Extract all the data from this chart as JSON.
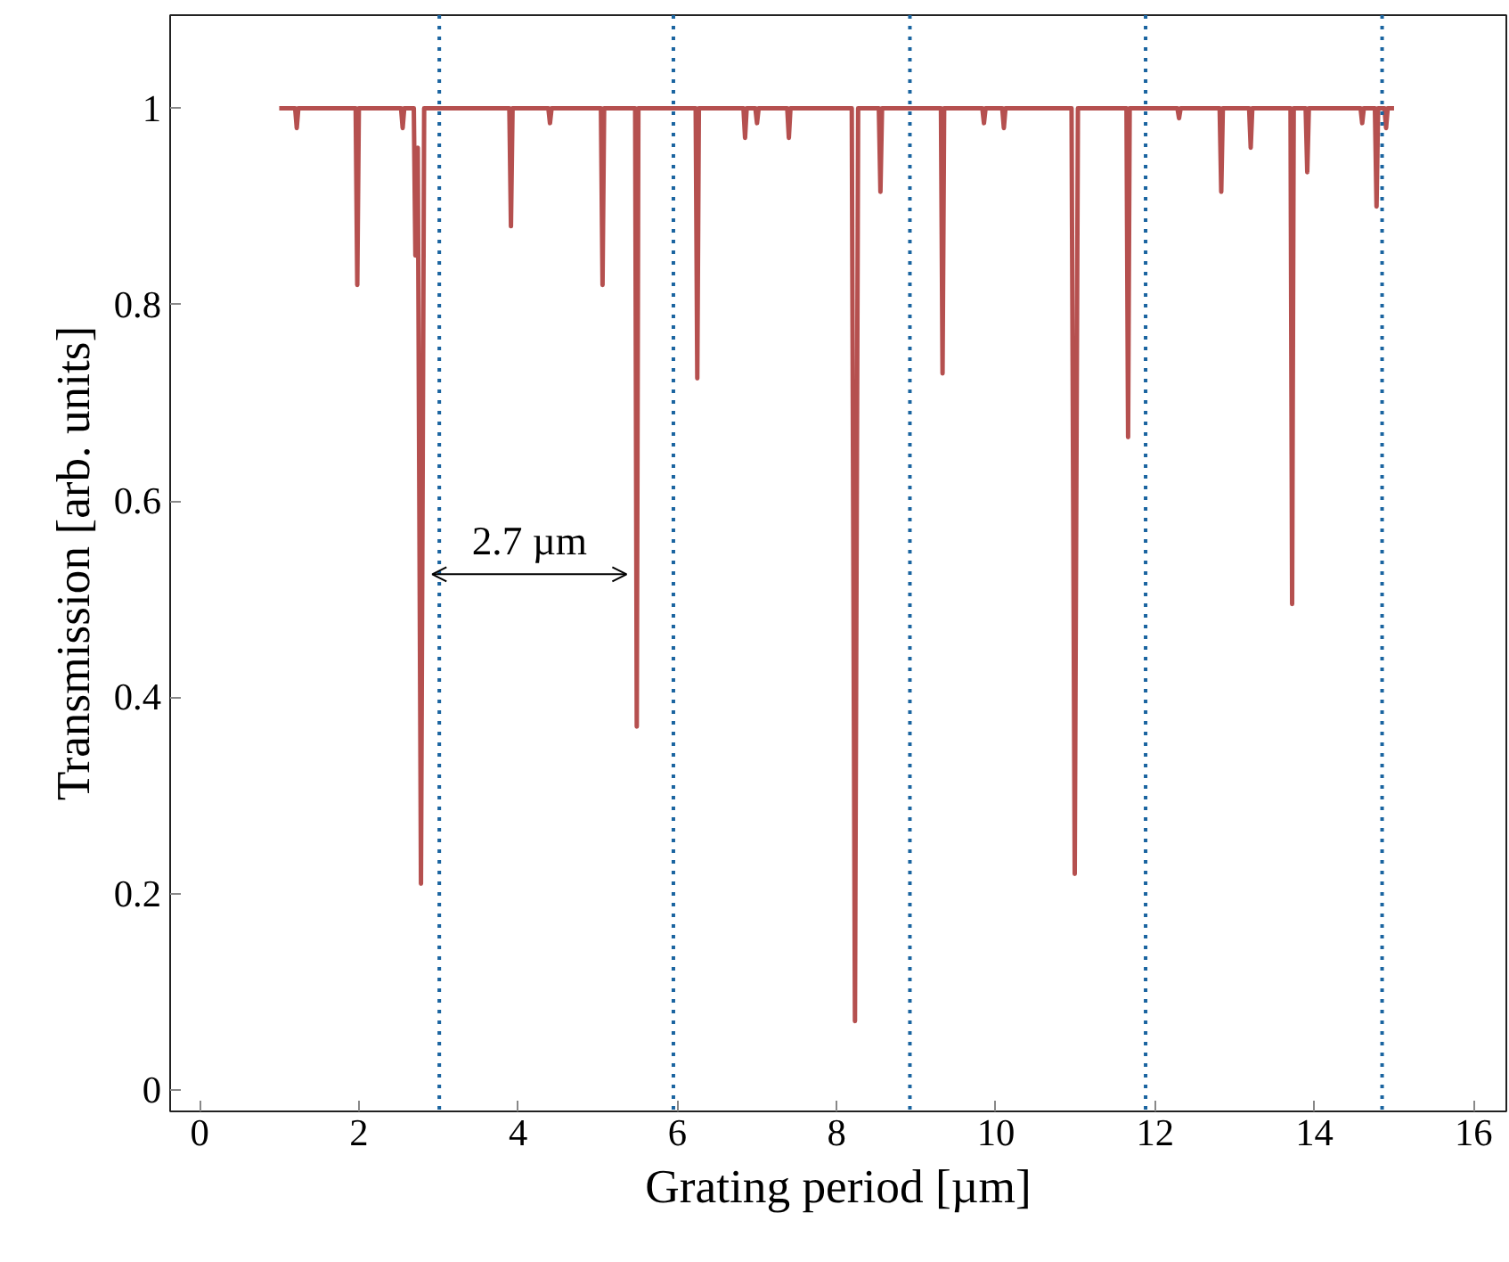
{
  "chart_data": {
    "type": "line",
    "xlabel": "Grating period [µm]",
    "ylabel": "Transmission [arb. units]",
    "xlim": [
      -0.37,
      16.41
    ],
    "ylim": [
      -0.022,
      1.095
    ],
    "xticks": [
      0,
      2,
      4,
      6,
      8,
      10,
      12,
      14,
      16
    ],
    "yticks": [
      0,
      0.2,
      0.4,
      0.6,
      0.8,
      1
    ],
    "grid": false,
    "marker": "none",
    "line_style": "solid",
    "series": [
      {
        "color": "#b5504f",
        "x": [
          1.0,
          1.2,
          1.22,
          1.24,
          1.96,
          1.98,
          2.0,
          2.53,
          2.55,
          2.57,
          2.69,
          2.71,
          2.74,
          2.78,
          2.82,
          3.89,
          3.91,
          3.93,
          4.38,
          4.4,
          4.42,
          5.04,
          5.06,
          5.08,
          5.47,
          5.49,
          5.51,
          6.23,
          6.25,
          6.27,
          6.83,
          6.85,
          6.87,
          6.98,
          7.0,
          7.02,
          7.38,
          7.4,
          7.42,
          8.19,
          8.23,
          8.27,
          8.53,
          8.55,
          8.57,
          9.31,
          9.33,
          9.35,
          9.83,
          9.85,
          9.87,
          10.08,
          10.1,
          10.12,
          10.95,
          10.99,
          11.03,
          11.64,
          11.66,
          11.68,
          12.28,
          12.3,
          12.32,
          12.81,
          12.83,
          12.85,
          13.18,
          13.2,
          13.22,
          13.7,
          13.72,
          13.74,
          13.89,
          13.91,
          13.93,
          14.58,
          14.6,
          14.62,
          14.76,
          14.78,
          14.8,
          14.88,
          14.9,
          14.92,
          15.0
        ],
        "values": [
          1,
          1,
          0.98,
          1,
          1,
          0.82,
          1,
          1,
          0.98,
          1,
          1,
          0.85,
          0.96,
          0.21,
          1,
          1,
          0.88,
          1,
          1,
          0.985,
          1,
          1,
          0.82,
          1,
          1,
          0.37,
          1,
          1,
          0.725,
          1,
          1,
          0.97,
          1,
          1,
          0.985,
          1,
          1,
          0.97,
          1,
          1,
          0.07,
          1,
          1,
          0.915,
          1,
          1,
          0.73,
          1,
          1,
          0.985,
          1,
          1,
          0.98,
          1,
          1,
          0.22,
          1,
          1,
          0.665,
          1,
          1,
          0.99,
          1,
          1,
          0.915,
          1,
          1,
          0.96,
          1,
          1,
          0.495,
          1,
          1,
          0.935,
          1,
          1,
          0.985,
          1,
          1,
          0.9,
          1,
          1,
          0.98,
          1,
          1
        ]
      }
    ],
    "ref_lines": [
      {
        "axis": "x",
        "value": 3.01,
        "color": "#1a64a0",
        "line_style": "dotted"
      },
      {
        "axis": "x",
        "value": 5.95,
        "color": "#1a64a0",
        "line_style": "dotted"
      },
      {
        "axis": "x",
        "value": 8.92,
        "color": "#1a64a0",
        "line_style": "dotted"
      },
      {
        "axis": "x",
        "value": 11.88,
        "color": "#1a64a0",
        "line_style": "dotted"
      },
      {
        "axis": "x",
        "value": 14.85,
        "color": "#1a64a0",
        "line_style": "dotted"
      }
    ],
    "annotations": [
      "2.7 µm"
    ]
  }
}
